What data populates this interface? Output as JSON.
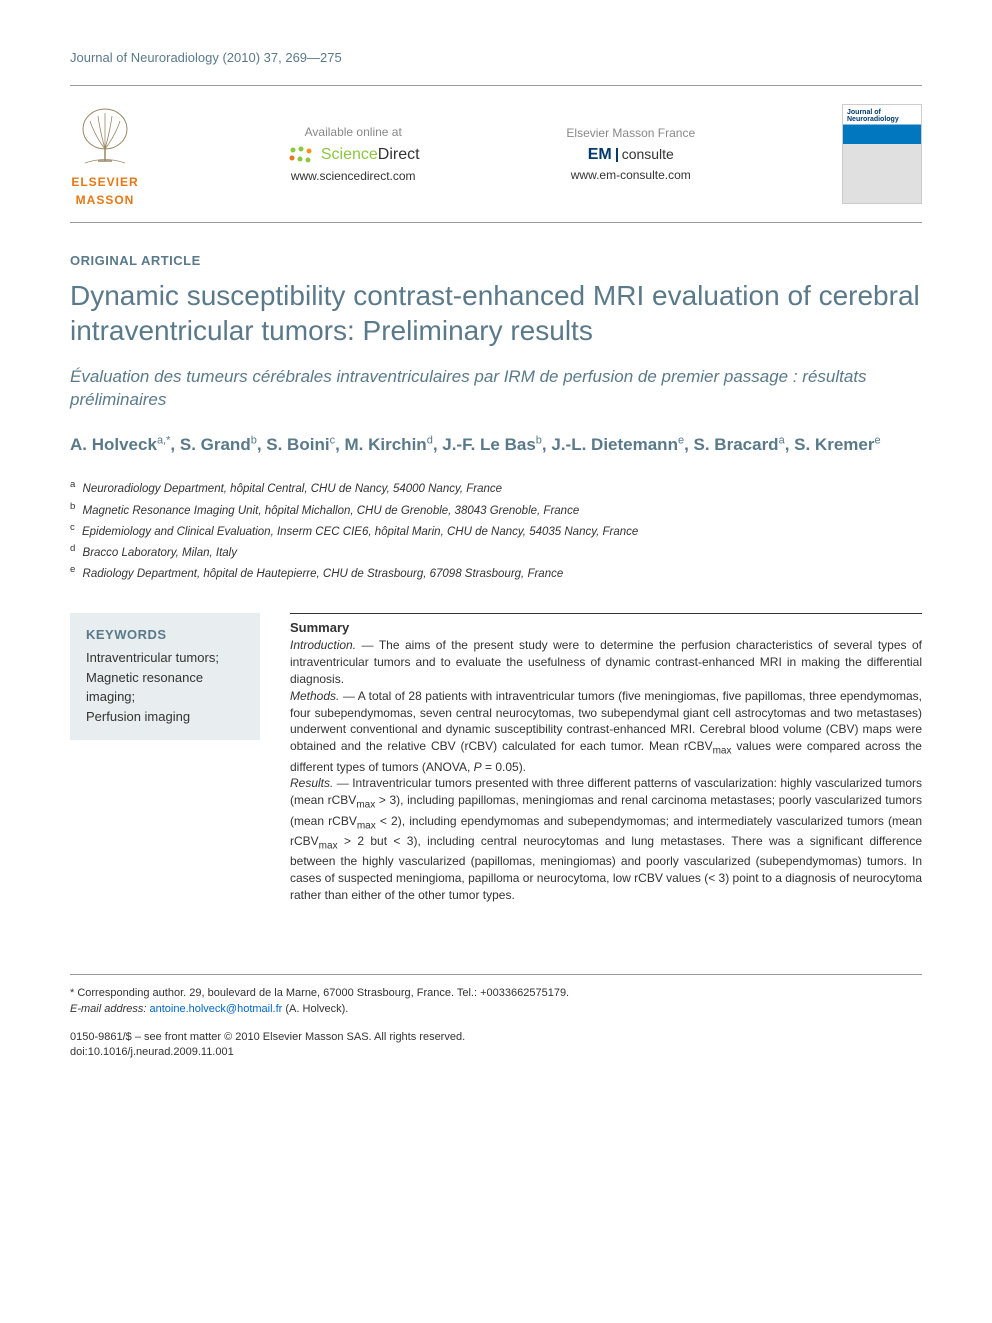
{
  "journal_ref": "Journal of Neuroradiology (2010) 37, 269—275",
  "header": {
    "elsevier_name": "ELSEVIER",
    "elsevier_sub": "MASSON",
    "sd_label": "Available online at",
    "sd_sci": "Science",
    "sd_dir": "Direct",
    "sd_url": "www.sciencedirect.com",
    "em_label": "Elsevier Masson France",
    "em_logo": "EM",
    "em_consulte": "consulte",
    "em_url": "www.em-consulte.com",
    "cover_journal": "Journal of",
    "cover_name": "Neuroradiology"
  },
  "article_type": "ORIGINAL ARTICLE",
  "title": "Dynamic susceptibility contrast-enhanced MRI evaluation of cerebral intraventricular tumors: Preliminary results",
  "subtitle": "Évaluation des tumeurs cérébrales intraventriculaires par IRM de perfusion de premier passage : résultats préliminaires",
  "authors_html": "A. Holveck<sup>a,*</sup>, S. Grand<sup>b</sup>, S. Boini<sup>c</sup>, M. Kirchin<sup>d</sup>, J.-F. Le Bas<sup>b</sup>, J.-L. Dietemann<sup>e</sup>, S. Bracard<sup>a</sup>, S. Kremer<sup>e</sup>",
  "affiliations": [
    {
      "sup": "a",
      "text": "Neuroradiology Department, hôpital Central, CHU de Nancy, 54000 Nancy, France"
    },
    {
      "sup": "b",
      "text": "Magnetic Resonance Imaging Unit, hôpital Michallon, CHU de Grenoble, 38043 Grenoble, France"
    },
    {
      "sup": "c",
      "text": "Epidemiology and Clinical Evaluation, Inserm CEC CIE6, hôpital Marin, CHU de Nancy, 54035 Nancy, France"
    },
    {
      "sup": "d",
      "text": "Bracco Laboratory, Milan, Italy"
    },
    {
      "sup": "e",
      "text": "Radiology Department, hôpital de Hautepierre, CHU de Strasbourg, 67098 Strasbourg, France"
    }
  ],
  "keywords": {
    "heading": "KEYWORDS",
    "items": "Intraventricular tumors;\nMagnetic resonance imaging;\nPerfusion imaging"
  },
  "summary": {
    "heading": "Summary",
    "intro_label": "Introduction. —",
    "intro": "The aims of the present study were to determine the perfusion characteristics of several types of intraventricular tumors and to evaluate the usefulness of dynamic contrast-enhanced MRI in making the differential diagnosis.",
    "methods_label": "Methods. —",
    "methods": "A total of 28 patients with intraventricular tumors (five meningiomas, five papillomas, three ependymomas, four subependymomas, seven central neurocytomas, two subependymal giant cell astrocytomas and two metastases) underwent conventional and dynamic susceptibility contrast-enhanced MRI. Cerebral blood volume (CBV) maps were obtained and the relative CBV (rCBV) calculated for each tumor. Mean rCBVmax values were compared across the different types of tumors (ANOVA, P = 0.05).",
    "results_label": "Results. —",
    "results": "Intraventricular tumors presented with three different patterns of vascularization: highly vascularized tumors (mean rCBVmax > 3), including papillomas, meningiomas and renal carcinoma metastases; poorly vascularized tumors (mean rCBVmax < 2), including ependymomas and subependymomas; and intermediately vascularized tumors (mean rCBVmax > 2 but < 3), including central neurocytomas and lung metastases. There was a significant difference between the highly vascularized (papillomas, meningiomas) and poorly vascularized (subependymomas) tumors. In cases of suspected meningioma, papilloma or neurocytoma, low rCBV values (< 3) point to a diagnosis of neurocytoma rather than either of the other tumor types."
  },
  "footer": {
    "corr_label": "* Corresponding author. 29, boulevard de la Marne, 67000 Strasbourg, France. Tel.: +0033662575179.",
    "email_label": "E-mail address:",
    "email": "antoine.holveck@hotmail.fr",
    "email_name": "(A. Holveck).",
    "issn": "0150-9861/$ – see front matter © 2010 Elsevier Masson SAS. All rights reserved.",
    "doi": "doi:10.1016/j.neurad.2009.11.001"
  }
}
